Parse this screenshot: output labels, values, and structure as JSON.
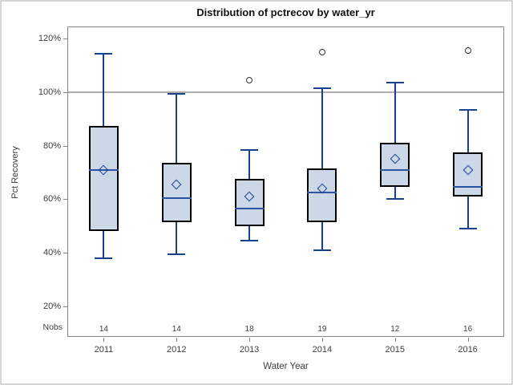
{
  "chart_data": {
    "type": "box",
    "title": "Distribution of pctrecov by water_yr",
    "xlabel": "Water Year",
    "ylabel": "Pct Recovery",
    "categories": [
      "2011",
      "2012",
      "2013",
      "2014",
      "2015",
      "2016"
    ],
    "nobs_label": "Nobs",
    "nobs": [
      14,
      14,
      18,
      19,
      12,
      16
    ],
    "yticks": [
      120,
      100,
      80,
      60,
      40,
      20
    ],
    "ytick_suffix": "%",
    "ylim": [
      8.5,
      124.6
    ],
    "reference_line": 100,
    "grid": "off",
    "legend": "none",
    "boxes": [
      {
        "category": "2011",
        "min": 38,
        "q1": 48,
        "median": 71,
        "mean": 71,
        "q3": 87.5,
        "max": 114.5,
        "outliers": []
      },
      {
        "category": "2012",
        "min": 39.5,
        "q1": 51.5,
        "median": 60.5,
        "mean": 65.5,
        "q3": 73.5,
        "max": 99.5,
        "outliers": []
      },
      {
        "category": "2013",
        "min": 44.5,
        "q1": 50,
        "median": 56.5,
        "mean": 61,
        "q3": 67.5,
        "max": 78.5,
        "outliers": [
          104.5
        ]
      },
      {
        "category": "2014",
        "min": 41,
        "q1": 51.5,
        "median": 62.5,
        "mean": 64,
        "q3": 71.5,
        "max": 101.5,
        "outliers": [
          115
        ]
      },
      {
        "category": "2015",
        "min": 60,
        "q1": 64.5,
        "median": 71,
        "mean": 75,
        "q3": 81,
        "max": 103.5,
        "outliers": []
      },
      {
        "category": "2016",
        "min": 49,
        "q1": 61,
        "median": 64.5,
        "mean": 71,
        "q3": 77.5,
        "max": 93.5,
        "outliers": [
          115.5
        ]
      }
    ]
  },
  "colors": {
    "box_fill": "#ccd7e7",
    "box_border": "#000000",
    "whisker": "#17418f",
    "median": "#2a55a3",
    "mean_marker": "#17418f",
    "outlier": "#2e2e2e",
    "axis": "#858585",
    "reference_line": "#adadad",
    "text": "#3d3d3d",
    "title_text": "#111111"
  }
}
